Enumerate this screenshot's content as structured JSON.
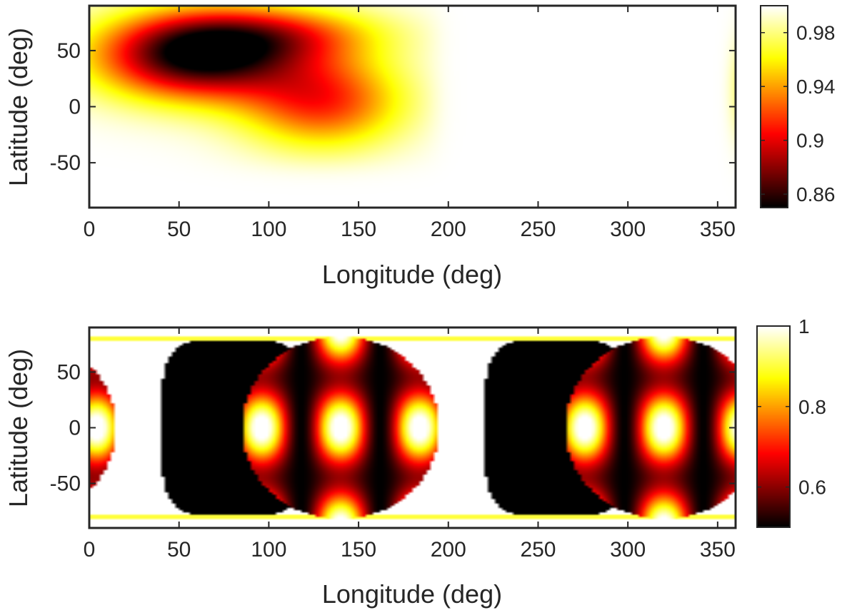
{
  "chart_data": [
    {
      "type": "heatmap",
      "xlabel": "Longitude (deg)",
      "ylabel": "Latitude (deg)",
      "xlim": [
        0,
        360
      ],
      "ylim": [
        -90,
        90
      ],
      "x_ticks": [
        0,
        50,
        100,
        150,
        200,
        250,
        300,
        350
      ],
      "y_ticks": [
        -50,
        0,
        50
      ],
      "colorbar": {
        "colormap": "hot",
        "range": [
          0.85,
          1.0
        ],
        "ticks": [
          0.86,
          0.9,
          0.94,
          0.98
        ],
        "tick_labels": [
          "0.86",
          "0.9",
          "0.94",
          "0.98"
        ]
      },
      "features": [
        {
          "description": "dark trough",
          "lon": 65,
          "lat": 45,
          "value": 0.86
        },
        {
          "description": "dark extension",
          "lon": 120,
          "lat": 10,
          "value": 0.89
        },
        {
          "description": "faint yellow edge",
          "lon": 360,
          "lat": 20,
          "value": 0.98
        }
      ],
      "background_value": 1.0
    },
    {
      "type": "heatmap",
      "xlabel": "Longitude (deg)",
      "ylabel": "Latitude (deg)",
      "xlim": [
        0,
        360
      ],
      "ylim": [
        -90,
        90
      ],
      "x_ticks": [
        0,
        50,
        100,
        150,
        200,
        250,
        300,
        350
      ],
      "y_ticks": [
        -50,
        0,
        50
      ],
      "colorbar": {
        "colormap": "hot",
        "range": [
          0.5,
          1.0
        ],
        "ticks": [
          0.6,
          0.8,
          1.0
        ],
        "tick_labels": [
          "0.6",
          "0.8",
          "1"
        ]
      },
      "pattern": "two periodic banded discs centered near longitude 140 and 320, with dark bands between them",
      "background_value": 1.0
    }
  ]
}
